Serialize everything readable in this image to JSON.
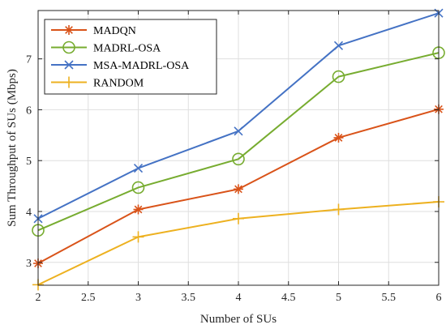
{
  "chart_data": {
    "type": "line",
    "title": "",
    "xlabel": "Number of SUs",
    "ylabel": "Sum Throughput of SUs (Mbps)",
    "xlim": [
      2,
      6
    ],
    "ylim": [
      2.55,
      7.95
    ],
    "xticks": [
      2,
      2.5,
      3,
      3.5,
      4,
      4.5,
      5,
      5.5,
      6
    ],
    "xtick_labels": [
      "2",
      "2.5",
      "3",
      "3.5",
      "4",
      "4.5",
      "5",
      "5.5",
      "6"
    ],
    "yticks": [
      3,
      4,
      5,
      6,
      7
    ],
    "ytick_labels": [
      "3",
      "4",
      "5",
      "6",
      "7"
    ],
    "grid": true,
    "legend_position": "top-left",
    "x": [
      2,
      3,
      4,
      5,
      6
    ],
    "series": [
      {
        "name": "MADQN",
        "values": [
          2.98,
          4.04,
          4.44,
          5.45,
          6.01
        ],
        "color": "#D95319",
        "marker": "asterisk"
      },
      {
        "name": "MADRL-OSA",
        "values": [
          3.63,
          4.47,
          5.03,
          6.65,
          7.12
        ],
        "color": "#77AC30",
        "marker": "circle"
      },
      {
        "name": "MSA-MADRL-OSA",
        "values": [
          3.86,
          4.85,
          5.58,
          7.26,
          7.9
        ],
        "color": "#4472C4",
        "marker": "cross"
      },
      {
        "name": "RANDOM",
        "values": [
          2.56,
          3.5,
          3.86,
          4.04,
          4.19
        ],
        "color": "#EDB120",
        "marker": "plus"
      }
    ]
  }
}
